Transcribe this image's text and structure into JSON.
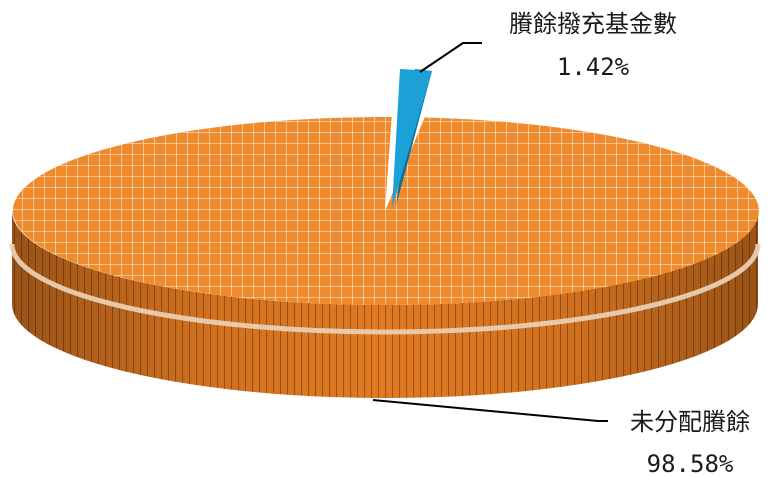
{
  "chart_data": {
    "type": "pie",
    "title": "",
    "style": "3d-exploded",
    "slices": [
      {
        "label": "賸餘撥充基金數",
        "value": 1.42,
        "value_label": "1.42%",
        "color": "#1ba0d8",
        "pattern": "solid",
        "exploded": true
      },
      {
        "label": "未分配賸餘",
        "value": 98.58,
        "value_label": "98.58%",
        "color": "#ef8b2c",
        "pattern": "white-grid",
        "exploded": false
      }
    ],
    "legend": "none",
    "data_labels": "callout-lines"
  }
}
